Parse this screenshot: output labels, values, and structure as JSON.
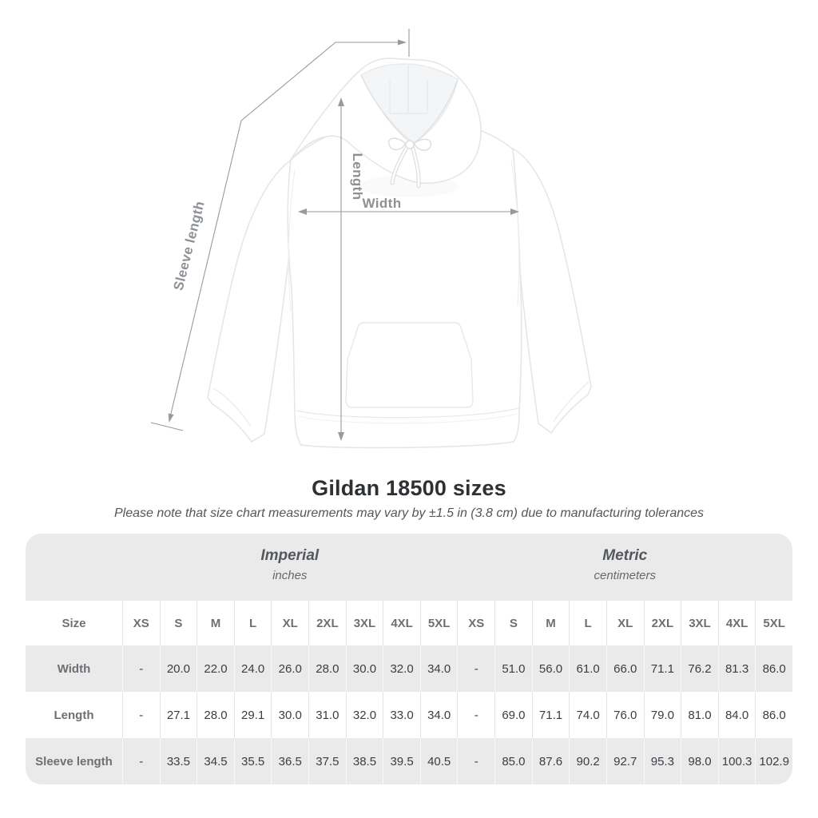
{
  "title": "Gildan 18500 sizes",
  "note": "Please note that size chart measurements may vary by ±1.5 in (3.8 cm) due to manufacturing tolerances",
  "hero_labels": {
    "sleeve": "Sleeve length",
    "length": "Length",
    "width": "Width"
  },
  "chart_data": {
    "type": "table",
    "title": "Gildan 18500 sizes",
    "unit_groups": [
      {
        "label": "Imperial",
        "sublabel": "inches"
      },
      {
        "label": "Metric",
        "sublabel": "centimeters"
      }
    ],
    "size_header": "Size",
    "sizes": [
      "XS",
      "S",
      "M",
      "L",
      "XL",
      "2XL",
      "3XL",
      "4XL",
      "5XL"
    ],
    "rows": [
      {
        "label": "Width",
        "imperial": [
          "-",
          "20.0",
          "22.0",
          "24.0",
          "26.0",
          "28.0",
          "30.0",
          "32.0",
          "34.0"
        ],
        "metric": [
          "-",
          "51.0",
          "56.0",
          "61.0",
          "66.0",
          "71.1",
          "76.2",
          "81.3",
          "86.0"
        ]
      },
      {
        "label": "Length",
        "imperial": [
          "-",
          "27.1",
          "28.0",
          "29.1",
          "30.0",
          "31.0",
          "32.0",
          "33.0",
          "34.0"
        ],
        "metric": [
          "-",
          "69.0",
          "71.1",
          "74.0",
          "76.0",
          "79.0",
          "81.0",
          "84.0",
          "86.0"
        ]
      },
      {
        "label": "Sleeve length",
        "imperial": [
          "-",
          "33.5",
          "34.5",
          "35.5",
          "36.5",
          "37.5",
          "38.5",
          "39.5",
          "40.5"
        ],
        "metric": [
          "-",
          "85.0",
          "87.6",
          "90.2",
          "92.7",
          "95.3",
          "98.0",
          "100.3",
          "102.9"
        ]
      }
    ]
  },
  "colors": {
    "table_stripe": "#eaeaea",
    "annotation_line": "#97999c",
    "annotation_text": "#8d9195",
    "value_text": "#393e43",
    "header_text": "#6c7074"
  }
}
